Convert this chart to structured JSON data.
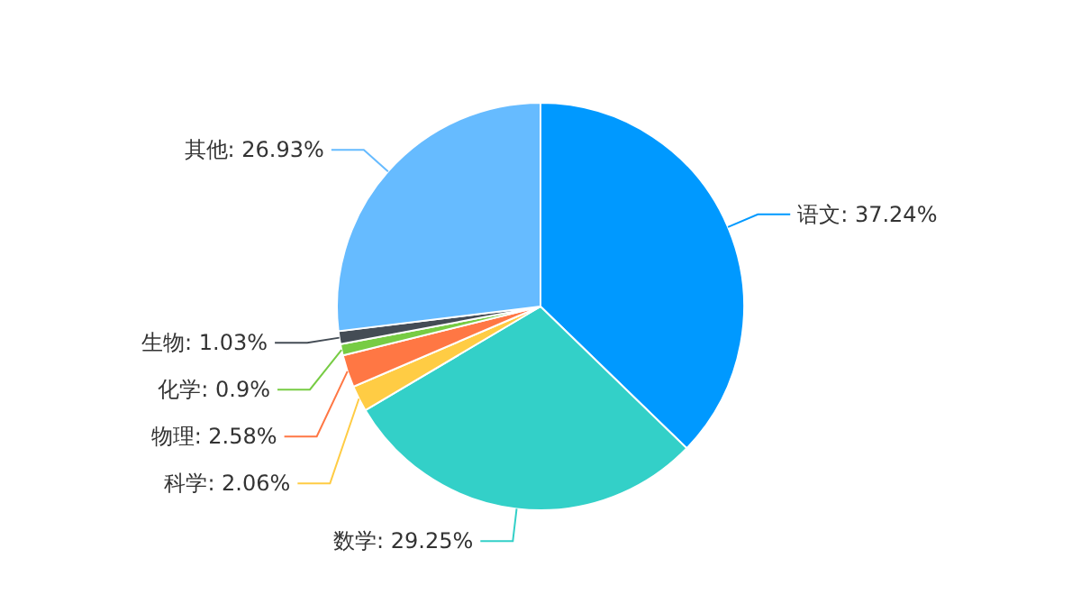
{
  "chart_data": {
    "type": "pie",
    "categories": [
      "语文",
      "数学",
      "科学",
      "物理",
      "化学",
      "生物",
      "其他"
    ],
    "values": [
      37.24,
      29.25,
      2.06,
      2.58,
      0.9,
      1.03,
      26.93
    ],
    "colors": [
      "#0099ff",
      "#33d0c8",
      "#ffcc44",
      "#ff7744",
      "#77cc44",
      "#444c55",
      "#66bbff"
    ],
    "value_labels": [
      ": 37.24%",
      ": 29.25%",
      ": 2.06%",
      ": 2.58%",
      ": 0.9%",
      ": 1.03%",
      ": 26.93%"
    ]
  }
}
